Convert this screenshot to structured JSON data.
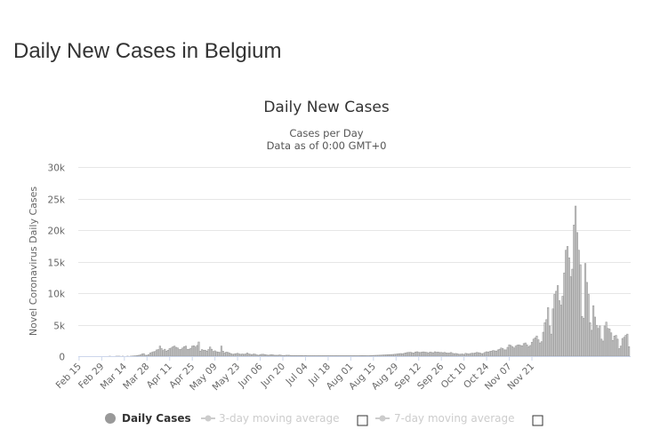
{
  "page": {
    "title": "Daily New Cases in Belgium"
  },
  "chart_data": {
    "type": "bar",
    "title": "Daily New Cases",
    "subtitle_lines": [
      "Cases per Day",
      "Data as of 0:00 GMT+0"
    ],
    "xlabel": "",
    "ylabel": "Novel Coronavirus Daily Cases",
    "ylim": [
      0,
      30000
    ],
    "y_ticks": [
      0,
      5000,
      10000,
      15000,
      20000,
      25000,
      30000
    ],
    "y_tick_labels": [
      "0",
      "5k",
      "10k",
      "15k",
      "20k",
      "25k",
      "30k"
    ],
    "x_tick_labels": [
      "Feb 15",
      "Feb 29",
      "Mar 14",
      "Mar 28",
      "Apr 11",
      "Apr 25",
      "May 09",
      "May 23",
      "Jun 06",
      "Jun 20",
      "Jul 04",
      "Jul 18",
      "Aug 01",
      "Aug 15",
      "Aug 29",
      "Sep 12",
      "Sep 26",
      "Oct 10",
      "Oct 24",
      "Nov 07",
      "Nov 21"
    ],
    "grid": true,
    "legend_position": "bottom",
    "legend": [
      {
        "label": "Daily Cases",
        "active": true
      },
      {
        "label": "3-day moving average",
        "active": false
      },
      {
        "label": "7-day moving average",
        "active": false
      }
    ],
    "colors": {
      "bar": "#cccccc",
      "bar_stroke": "#999999",
      "grid": "#e6e6e6",
      "axis": "#ccd6eb",
      "legend_active": "#333333",
      "legend_inactive": "#cccccc"
    },
    "x_start": "Feb 15",
    "series": [
      {
        "name": "Daily Cases",
        "values": [
          0,
          0,
          0,
          0,
          0,
          0,
          0,
          0,
          0,
          0,
          0,
          0,
          0,
          0,
          0,
          0,
          0,
          0,
          0,
          1,
          0,
          0,
          0,
          1,
          1,
          1,
          0,
          2,
          0,
          0,
          10,
          0,
          10,
          30,
          50,
          60,
          100,
          150,
          200,
          350,
          400,
          150,
          150,
          250,
          500,
          600,
          700,
          750,
          1000,
          1050,
          1600,
          1200,
          900,
          1100,
          800,
          950,
          1200,
          1300,
          1500,
          1600,
          1400,
          1300,
          1050,
          1100,
          1300,
          1500,
          1600,
          1100,
          1100,
          1250,
          1600,
          1650,
          1450,
          1700,
          2250,
          800,
          1050,
          950,
          950,
          800,
          1050,
          1450,
          1100,
          750,
          850,
          700,
          650,
          600,
          1600,
          800,
          500,
          650,
          600,
          500,
          400,
          300,
          350,
          400,
          450,
          350,
          300,
          350,
          300,
          350,
          500,
          350,
          300,
          250,
          350,
          300,
          200,
          150,
          250,
          300,
          300,
          250,
          200,
          150,
          200,
          250,
          200,
          150,
          150,
          150,
          200,
          150,
          100,
          100,
          150,
          150,
          150,
          100,
          100,
          100,
          100,
          100,
          100,
          100,
          100,
          80,
          100,
          80,
          80,
          80,
          80,
          80,
          80,
          80,
          80,
          80,
          80,
          80,
          80,
          80,
          80,
          80,
          80,
          80,
          80,
          80,
          80,
          80,
          80,
          80,
          80,
          80,
          80,
          80,
          80,
          80,
          80,
          80,
          80,
          80,
          90,
          100,
          90,
          90,
          80,
          80,
          100,
          110,
          120,
          130,
          140,
          150,
          160,
          170,
          190,
          200,
          220,
          240,
          250,
          260,
          270,
          300,
          320,
          360,
          400,
          420,
          380,
          450,
          520,
          580,
          600,
          620,
          550,
          500,
          650,
          700,
          620,
          580,
          650,
          680,
          630,
          600,
          500,
          650,
          600,
          550,
          700,
          620,
          650,
          580,
          600,
          550,
          600,
          520,
          480,
          500,
          580,
          450,
          400,
          430,
          380,
          300,
          320,
          350,
          280,
          450,
          400,
          350,
          420,
          480,
          450,
          520,
          600,
          550,
          500,
          400,
          450,
          600,
          700,
          650,
          750,
          800,
          900,
          850,
          800,
          1000,
          1100,
          1300,
          1200,
          1000,
          1000,
          1400,
          1800,
          1700,
          1500,
          1300,
          1600,
          1750,
          1800,
          1700,
          1650,
          2000,
          2100,
          1800,
          1500,
          1700,
          2200,
          2700,
          2900,
          3200,
          2600,
          2100,
          2300,
          3800,
          5300,
          5800,
          7700,
          4800,
          3500,
          7500,
          9800,
          10300,
          11200,
          8800,
          8100,
          9500,
          13200,
          16800,
          17400,
          15600,
          12600,
          13800,
          20800,
          23800,
          19600,
          16800,
          14500,
          6300,
          6000,
          14700,
          11700,
          9800,
          5300,
          4100,
          8000,
          6200,
          4900,
          4400,
          4800,
          2700,
          2400,
          4800,
          5400,
          4400,
          4300,
          3700,
          2500,
          3200,
          3300,
          2700,
          1200,
          1600,
          2800,
          3000,
          3300,
          3500,
          1500
        ]
      }
    ]
  }
}
